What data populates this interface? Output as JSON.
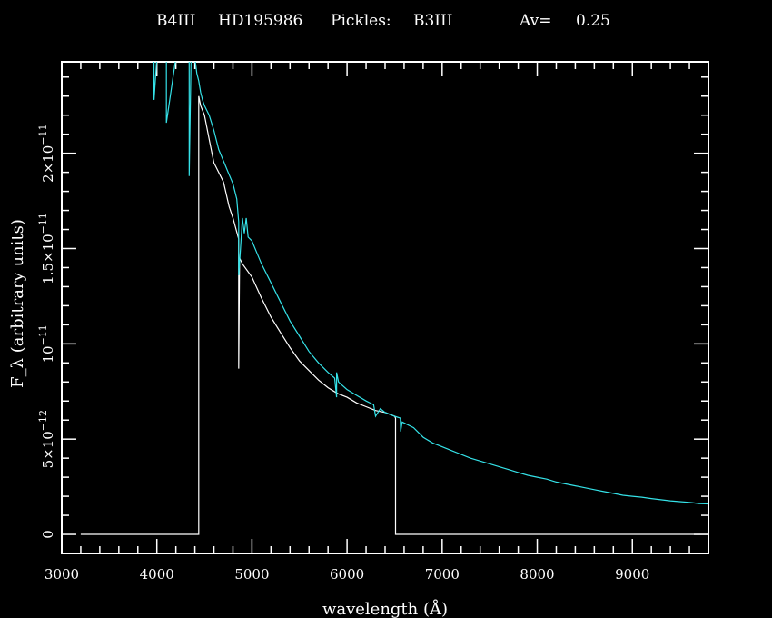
{
  "title": {
    "star_type": "B4III",
    "star_id": "HD195986",
    "pickles_label": "Pickles:",
    "pickles_type": "B3III",
    "av_label": "Av=",
    "av_value": "0.25"
  },
  "chart_data": {
    "type": "line",
    "xlabel": "wavelength (Å)",
    "ylabel": "F_λ (arbitrary units)",
    "xlim": [
      3000,
      9800
    ],
    "ylim": [
      -1e-12,
      2.48e-11
    ],
    "x_ticks": [
      3000,
      4000,
      5000,
      6000,
      7000,
      8000,
      9000
    ],
    "x_tick_labels": [
      "3000",
      "4000",
      "5000",
      "6000",
      "7000",
      "8000",
      "9000"
    ],
    "y_ticks": [
      0,
      5e-12,
      1e-11,
      1.5e-11,
      2e-11
    ],
    "y_tick_mantissa": [
      "0",
      "5×10",
      "10",
      "1.5×10",
      "2×10"
    ],
    "y_tick_exponent": [
      "",
      "−12",
      "−11",
      "−11",
      "−11"
    ],
    "series": [
      {
        "color": "#ffffff",
        "x": [
          3200,
          4440,
          4440,
          4460,
          4500,
          4560,
          4600,
          4700,
          4760,
          4800,
          4860,
          4860,
          4870,
          4900,
          5000,
          5100,
          5200,
          5300,
          5400,
          5500,
          5600,
          5700,
          5800,
          5900,
          6000,
          6100,
          6200,
          6300,
          6400,
          6500,
          6510,
          6510,
          9800
        ],
        "y": [
          0,
          0,
          2.3e-11,
          2.25e-11,
          2.2e-11,
          2.05e-11,
          1.95e-11,
          1.85e-11,
          1.72e-11,
          1.66e-11,
          1.55e-11,
          8.7e-12,
          1.45e-11,
          1.42e-11,
          1.35e-11,
          1.24e-11,
          1.14e-11,
          1.06e-11,
          9.8e-12,
          9.1e-12,
          8.6e-12,
          8.1e-12,
          7.7e-12,
          7.4e-12,
          7.2e-12,
          6.9e-12,
          6.7e-12,
          6.5e-12,
          6.4e-12,
          6.2e-12,
          6.1e-12,
          0,
          0
        ]
      },
      {
        "color": "#35e2e8",
        "x": [
          3940,
          3970,
          3970,
          4000,
          4100,
          4100,
          4200,
          4300,
          4340,
          4340,
          4360,
          4400,
          4420,
          4440,
          4460,
          4480,
          4500,
          4550,
          4600,
          4650,
          4700,
          4750,
          4800,
          4840,
          4860,
          4860,
          4880,
          4900,
          4920,
          4940,
          4960,
          5000,
          5050,
          5100,
          5200,
          5300,
          5400,
          5500,
          5600,
          5700,
          5800,
          5870,
          5890,
          5890,
          5910,
          6000,
          6100,
          6200,
          6280,
          6300,
          6350,
          6400,
          6500,
          6560,
          6563,
          6580,
          6700,
          6800,
          6900,
          7000,
          7100,
          7200,
          7300,
          7400,
          7500,
          7600,
          7700,
          7800,
          7900,
          8000,
          8100,
          8200,
          8300,
          8400,
          8500,
          8600,
          8700,
          8800,
          8900,
          9000,
          9100,
          9200,
          9300,
          9400,
          9500,
          9600,
          9700,
          9800
        ],
        "y": [
          2.5e-11,
          2.5e-11,
          2.28e-11,
          2.5e-11,
          2.5e-11,
          2.16e-11,
          2.5e-11,
          2.5e-11,
          2.5e-11,
          1.88e-11,
          2.5e-11,
          2.5e-11,
          2.42e-11,
          2.38e-11,
          2.32e-11,
          2.28e-11,
          2.25e-11,
          2.2e-11,
          2.12e-11,
          2.02e-11,
          1.96e-11,
          1.9e-11,
          1.84e-11,
          1.76e-11,
          1.64e-11,
          1.36e-11,
          1.5e-11,
          1.66e-11,
          1.58e-11,
          1.66e-11,
          1.56e-11,
          1.54e-11,
          1.48e-11,
          1.42e-11,
          1.32e-11,
          1.22e-11,
          1.12e-11,
          1.04e-11,
          9.6e-12,
          9e-12,
          8.5e-12,
          8.2e-12,
          7.2e-12,
          8.5e-12,
          8e-12,
          7.6e-12,
          7.3e-12,
          7e-12,
          6.8e-12,
          6.2e-12,
          6.6e-12,
          6.4e-12,
          6.2e-12,
          6.1e-12,
          5.4e-12,
          5.9e-12,
          5.6e-12,
          5.1e-12,
          4.8e-12,
          4.6e-12,
          4.4e-12,
          4.2e-12,
          4e-12,
          3.85e-12,
          3.7e-12,
          3.55e-12,
          3.4e-12,
          3.25e-12,
          3.1e-12,
          3e-12,
          2.9e-12,
          2.75e-12,
          2.65e-12,
          2.55e-12,
          2.45e-12,
          2.35e-12,
          2.25e-12,
          2.15e-12,
          2.05e-12,
          2e-12,
          1.95e-12,
          1.88e-12,
          1.82e-12,
          1.76e-12,
          1.72e-12,
          1.68e-12,
          1.62e-12,
          1.6e-12
        ]
      }
    ]
  }
}
